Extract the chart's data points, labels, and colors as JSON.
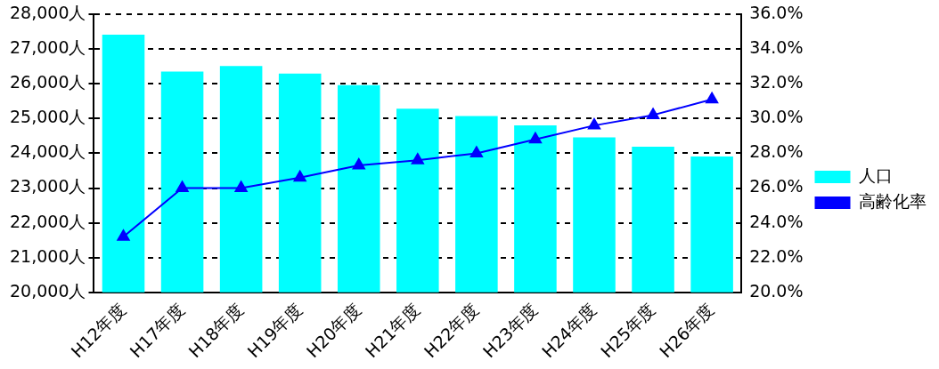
{
  "chart_data": {
    "type": "bar",
    "categories": [
      "H12年度",
      "H17年度",
      "H18年度",
      "H19年度",
      "H20年度",
      "H21年度",
      "H22年度",
      "H23年度",
      "H24年度",
      "H25年度",
      "H26年度"
    ],
    "series": [
      {
        "name": "人口",
        "color": "#00ffff",
        "values": [
          27410,
          26350,
          26510,
          26290,
          25960,
          25280,
          25070,
          24800,
          24460,
          24190,
          23910
        ]
      },
      {
        "name": "高齢化率",
        "type": "line",
        "axis": "y2",
        "color": "#0000ff",
        "marker": "triangle",
        "values": [
          23.2,
          26.0,
          26.0,
          26.6,
          27.3,
          27.6,
          28.0,
          28.8,
          29.6,
          30.2,
          31.1
        ]
      }
    ],
    "ylim": [
      20000,
      28000
    ],
    "yticks": [
      {
        "value": 20000,
        "label": "20,000人"
      },
      {
        "value": 21000,
        "label": "21,000人"
      },
      {
        "value": 22000,
        "label": "22,000人"
      },
      {
        "value": 23000,
        "label": "23,000人"
      },
      {
        "value": 24000,
        "label": "24,000人"
      },
      {
        "value": 25000,
        "label": "25,000人"
      },
      {
        "value": 26000,
        "label": "26,000人"
      },
      {
        "value": 27000,
        "label": "27,000人"
      },
      {
        "value": 28000,
        "label": "28,000人"
      }
    ],
    "y2lim": [
      20,
      36
    ],
    "y2ticks": [
      {
        "value": 20,
        "label": "20.0%"
      },
      {
        "value": 22,
        "label": "22.0%"
      },
      {
        "value": 24,
        "label": "24.0%"
      },
      {
        "value": 26,
        "label": "26.0%"
      },
      {
        "value": 28,
        "label": "28.0%"
      },
      {
        "value": 30,
        "label": "30.0%"
      },
      {
        "value": 32,
        "label": "32.0%"
      },
      {
        "value": 34,
        "label": "34.0%"
      },
      {
        "value": 36,
        "label": "36.0%"
      }
    ],
    "grid": "y",
    "legend": "right"
  }
}
